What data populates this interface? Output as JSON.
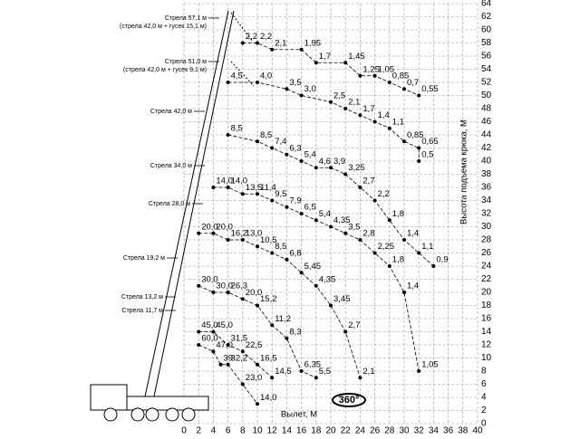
{
  "chart_data": {
    "type": "line",
    "x_label": "Вылет, М",
    "y_label": "Высота подъема крюка, М",
    "rotation_label": "360°",
    "xlim": [
      0,
      40
    ],
    "ylim": [
      0,
      64
    ],
    "xticks": [
      0,
      2,
      4,
      6,
      8,
      10,
      12,
      14,
      16,
      18,
      20,
      22,
      24,
      26,
      28,
      30,
      32,
      34,
      36,
      38,
      40
    ],
    "yticks": [
      0,
      2,
      4,
      6,
      8,
      10,
      12,
      14,
      16,
      18,
      20,
      22,
      24,
      26,
      28,
      30,
      32,
      34,
      36,
      38,
      40,
      42,
      44,
      46,
      48,
      50,
      52,
      54,
      56,
      58,
      60,
      62,
      64
    ],
    "grid": true,
    "series": [
      {
        "name": "Стрела 57,1 м",
        "note": "(стрела 42,0 м + гусек 15,1 м)",
        "color": "#000",
        "x": [
          8,
          10,
          12,
          16,
          18,
          22,
          24,
          26,
          28,
          30,
          32
        ],
        "values": [
          58,
          58,
          57,
          57,
          55,
          55,
          53,
          53,
          52,
          51,
          50
        ],
        "labels": [
          "2,2",
          "2,2",
          "2,1",
          "1,95",
          "1,7",
          "1,45",
          "1,25",
          "1,05",
          "0,85",
          "0,7",
          "0,55"
        ]
      },
      {
        "name": "Стрела 51,0 м",
        "note": "(стрела 42,0 м + гусек 9,1 м)",
        "color": "#000",
        "x": [
          6,
          10,
          14,
          16,
          20,
          22,
          24,
          26,
          28,
          30,
          32,
          32
        ],
        "values": [
          52,
          52,
          51,
          50,
          49,
          48,
          47,
          46,
          45,
          43,
          42,
          40
        ],
        "labels": [
          "4,5",
          "4,0",
          "3,5",
          "3,0",
          "2,5",
          "2,1",
          "1,7",
          "1,4",
          "1,1",
          "0,85",
          "0,65",
          "0,5"
        ]
      },
      {
        "name": "Стрела 42,0 м",
        "color": "#000",
        "x": [
          6,
          10,
          12,
          14,
          16,
          18,
          20,
          22,
          24,
          26,
          28,
          30,
          32,
          34
        ],
        "values": [
          44,
          43,
          42,
          41,
          40,
          39,
          39,
          38,
          36,
          34,
          31,
          28,
          26,
          24
        ],
        "labels": [
          "8,5",
          "8,5",
          "7,4",
          "6,3",
          "5,4",
          "4,6",
          "3,9",
          "3,25",
          "2,7",
          "2,2",
          "1,8",
          "1,4",
          "1,1",
          "0,9"
        ]
      },
      {
        "name": "Стрела 34,0 м",
        "color": "#000",
        "x": [
          4,
          6,
          8,
          10,
          12,
          14,
          16,
          18,
          20,
          22,
          24,
          26,
          28,
          30,
          32
        ],
        "values": [
          36,
          36,
          35,
          35,
          34,
          33,
          32,
          31,
          30,
          29,
          28,
          26,
          24,
          20,
          8
        ],
        "labels": [
          "14,0",
          "14,0",
          "13,5",
          "11,4",
          "9,5",
          "7,9",
          "6,5",
          "5,4",
          "4,35",
          "3,5",
          "2,8",
          "2,25",
          "1,8",
          "1,4",
          "1,05"
        ]
      },
      {
        "name": "Стрела 28,0 м",
        "color": "#000",
        "x": [
          2,
          4,
          6,
          8,
          10,
          12,
          14,
          16,
          18,
          20,
          22,
          24
        ],
        "values": [
          29,
          29,
          28,
          28,
          27,
          26,
          25,
          23,
          21,
          18,
          14,
          7
        ],
        "labels": [
          "20,0",
          "20,0",
          "16,2",
          "13,0",
          "10,5",
          "8,5",
          "6,8",
          "5,45",
          "4,35",
          "3,45",
          "2,7",
          "2,1"
        ]
      },
      {
        "name": "Стрела 19,2 м",
        "color": "#000",
        "x": [
          2,
          4,
          6,
          8,
          10,
          12,
          14,
          16,
          18
        ],
        "values": [
          21,
          20,
          20,
          19,
          18,
          15,
          13,
          8,
          7
        ],
        "labels": [
          "30,0",
          "30,0",
          "26,3",
          "20,0",
          "15,2",
          "11,2",
          "8,3",
          "6,35",
          "5,5"
        ]
      },
      {
        "name": "Стрела 13,2 м",
        "color": "#000",
        "x": [
          2,
          4,
          6,
          8,
          10,
          12
        ],
        "values": [
          14,
          14,
          12,
          11,
          9,
          7
        ],
        "labels": [
          "45,0",
          "45,0",
          "31,5",
          "22,5",
          "16,5",
          "14,5"
        ]
      },
      {
        "name": "Стрела 11,7 м",
        "color": "#000",
        "x": [
          2,
          4,
          5,
          6,
          8,
          10
        ],
        "values": [
          12,
          11,
          9,
          9,
          6,
          3
        ],
        "labels": [
          "60,0",
          "47,0",
          "39",
          "32,2",
          "23,0",
          "14,0"
        ]
      }
    ]
  }
}
